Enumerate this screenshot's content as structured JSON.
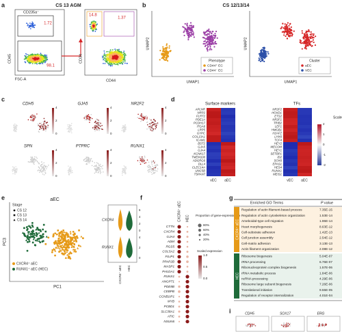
{
  "panel_labels": [
    "a",
    "b",
    "c",
    "d",
    "e",
    "f",
    "g",
    "i"
  ],
  "a": {
    "title": "CS 13 AGM",
    "gate_label": "CD235a⁻",
    "gates": [
      "1.72",
      "98.1",
      "14.8",
      "1.37"
    ],
    "x_labels": [
      "FSC-A",
      "CD44"
    ],
    "y_labels": [
      "CD45",
      "CD34"
    ]
  },
  "b": {
    "title": "CS 12/13/14",
    "x_label": "UMAP1",
    "y_label": "UMAP2",
    "legends": [
      {
        "title": "Phenotype",
        "items": [
          "CD44⁺ EC",
          "CD44⁻ EC"
        ]
      },
      {
        "title": "Cluster",
        "items": [
          "aEC",
          "VEC"
        ]
      }
    ]
  },
  "c": {
    "genes": [
      "CDH5",
      "GJA5",
      "NR2F2",
      "SPN",
      "PTPRC",
      "RUNX1"
    ],
    "scale_ticks": [
      "4",
      "2",
      "0"
    ]
  },
  "d": {
    "headers": [
      "Surface markers",
      "TFs"
    ],
    "left_genes": [
      "APLNR",
      "NRP2",
      "FLRT2",
      "PDE1A",
      "PCDH17",
      "ITGA6",
      "LRP5",
      "GYPC",
      "COL13A1",
      "ICAM1",
      "BST2",
      "GJA5",
      "GJA4",
      "KCNK17",
      "TMEM100",
      "ADGRG6",
      "DLL4",
      "CLEC14A",
      "UNC5B",
      "TSPAN7"
    ],
    "right_genes": [
      "NR2F2",
      "HOXD1",
      "ETS2",
      "NR2F1",
      "TRIB2",
      "LEF1",
      "HMGB1",
      "H2AFZ",
      "LHX6",
      "TCF4",
      "HEY2",
      "MECOM",
      "HEY1",
      "SETBP1",
      "ID2",
      "SOX6",
      "EPAS1",
      "HES4",
      "RUNX1",
      "MEIS1"
    ],
    "columns": [
      "vEC",
      "aEC"
    ],
    "scale_title": "Scaled expression",
    "scale_ticks": [
      "2",
      "1",
      "0",
      "-1",
      "-2"
    ]
  },
  "e": {
    "title": "aEC",
    "legend_title": "Stage",
    "stages": [
      "CS 12",
      "CS 13",
      "CS 14"
    ],
    "groups": [
      "CXCR4⁺ aEC",
      "RUNX1⁺ aEC (HEC)"
    ],
    "x_label": "PC1",
    "y_label": "PC3",
    "violin_genes": [
      "CXCR4",
      "RUNX1"
    ],
    "violin_ticks": [
      [
        "6",
        "4",
        "2",
        "0"
      ],
      [
        "4",
        "2",
        "0"
      ]
    ],
    "violin_columns": [
      "CXCR4⁺ aEC",
      "HEC"
    ]
  },
  "f": {
    "columns": [
      "CXCR4⁺ aEC",
      "HEC"
    ],
    "genes": [
      "CTTN",
      "CXCR4",
      "GJA4",
      "ADM",
      "RGS5",
      "COL5A2",
      "FILIP1",
      "PPAP2B",
      "MASP1",
      "PHLDA1",
      "RUNX1",
      "ANGPT1",
      "PDE8B",
      "CEBPB",
      "CCNB1IP1",
      "MYB",
      "PCBD1",
      "SLC38A1",
      "ATIC",
      "NSUN6"
    ],
    "size_title": "Proportion of gene-expressing cells",
    "size_ticks": [
      "80%",
      "60%",
      "40%",
      "20%"
    ],
    "color_title": "Scaled expression",
    "color_ticks": [
      "1.0",
      "0.5",
      "0.0"
    ]
  },
  "g": {
    "header": [
      "Enriched GO Terms",
      "P value"
    ],
    "groups": [
      {
        "name": "CXCR4⁺ aEC",
        "rows": [
          [
            "Regulation of actin filament-based process",
            "7.35E-15"
          ],
          [
            "Regulation of actin cytoskeleton organization",
            "1.53E-14"
          ],
          [
            "Ameboidal-type cell migration",
            "1.96E-14"
          ],
          [
            "Heart morphogenesis",
            "8.63E-12"
          ],
          [
            "Cell-substrate adhesion",
            "1.42E-13"
          ],
          [
            "Cell junction assembly",
            "2.54E-12"
          ],
          [
            "Cell-matrix adhesion",
            "3.13E-13"
          ],
          [
            "Actin filament organization",
            "2.08E-12"
          ]
        ]
      },
      {
        "name": "HEC",
        "rows": [
          [
            "Ribosome biogenesis",
            "5.04E-07"
          ],
          [
            "rRNA processing",
            "6.76E-07"
          ],
          [
            "Ribonucleoprotein complex biogenesis",
            "1.57E-06"
          ],
          [
            "rRNA metabolic process",
            "1.84E-06"
          ],
          [
            "ncRNA processing",
            "4.29E-06"
          ],
          [
            "Ribosome large subunit biogenesis",
            "7.26E-06"
          ],
          [
            "Translational initiation",
            "9.55E-05"
          ],
          [
            "Regulation of receptor internalization",
            "4.01E-04"
          ]
        ]
      }
    ]
  },
  "i": {
    "genes": [
      "CDH5",
      "SOX17",
      "ERG"
    ]
  }
}
